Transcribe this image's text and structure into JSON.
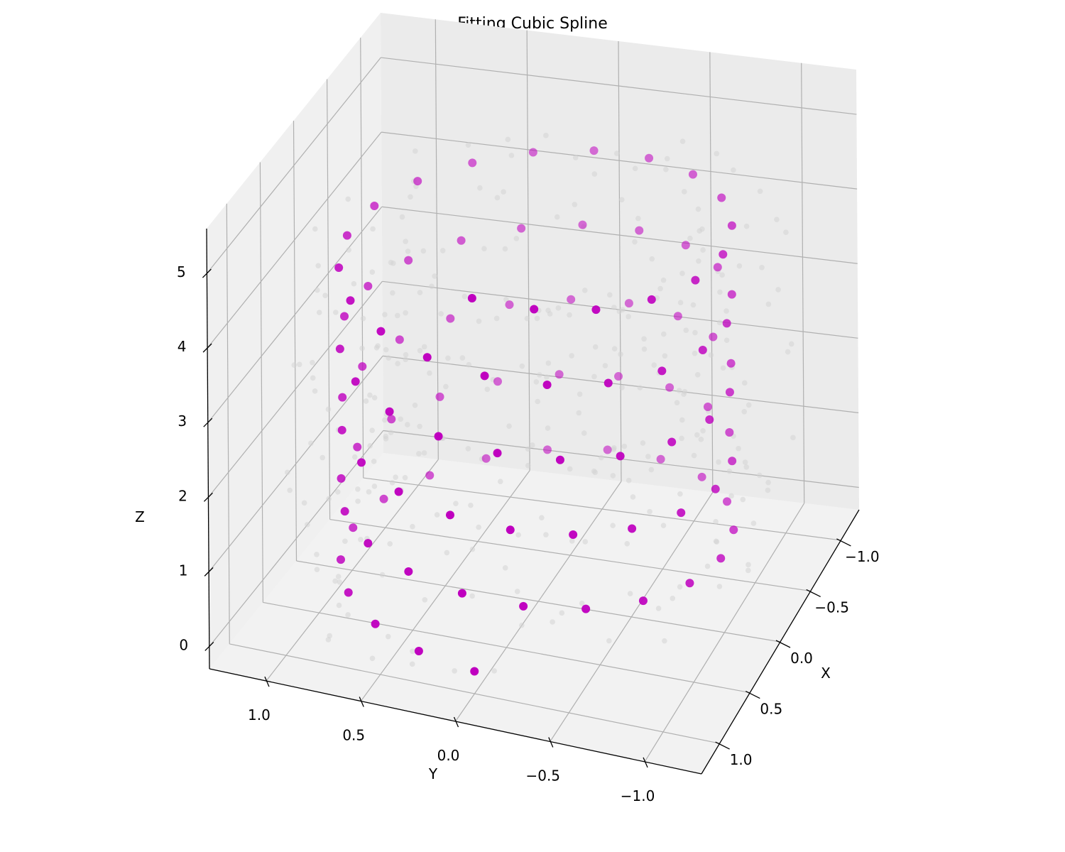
{
  "chart_data": {
    "type": "scatter3d",
    "title": "Fitting Cubic Spline",
    "xlabel": "X",
    "ylabel": "Y",
    "zlabel": "Z",
    "x_ticks": [
      "−1.0",
      "−0.5",
      "0.0",
      "0.5",
      "1.0"
    ],
    "y_ticks": [
      "−1.0",
      "−0.5",
      "0.0",
      "0.5",
      "1.0"
    ],
    "z_ticks": [
      "0",
      "1",
      "2",
      "3",
      "4",
      "5"
    ],
    "xlim": [
      -1.3,
      1.3
    ],
    "ylim": [
      -1.3,
      1.3
    ],
    "zlim": [
      -0.3,
      5.6
    ],
    "grid": true,
    "colors": {
      "spline_points": "#bf00bf",
      "noisy_points": "#d3d3d3",
      "pane": "#f2f2f2",
      "grid": "#b0b0b0"
    },
    "series": [
      {
        "name": "",
        "kind": "spline",
        "note_turns": 5,
        "z_range": [
          0,
          5
        ],
        "points": 100
      },
      {
        "name": "",
        "kind": "noisy",
        "points": 300
      }
    ]
  }
}
